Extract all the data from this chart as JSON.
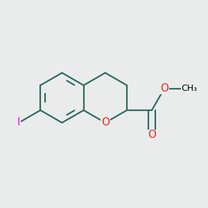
{
  "background_color": "#eaecec",
  "bond_color": "#2d6b5e",
  "bond_width": 1.6,
  "atom_colors": {
    "O": "#ff2020",
    "I": "#ff00ff",
    "C": "#2d6b5e"
  },
  "font_size_O": 11,
  "font_size_I": 11,
  "font_size_CH3": 9,
  "figsize": [
    3.0,
    3.0
  ],
  "dpi": 100
}
